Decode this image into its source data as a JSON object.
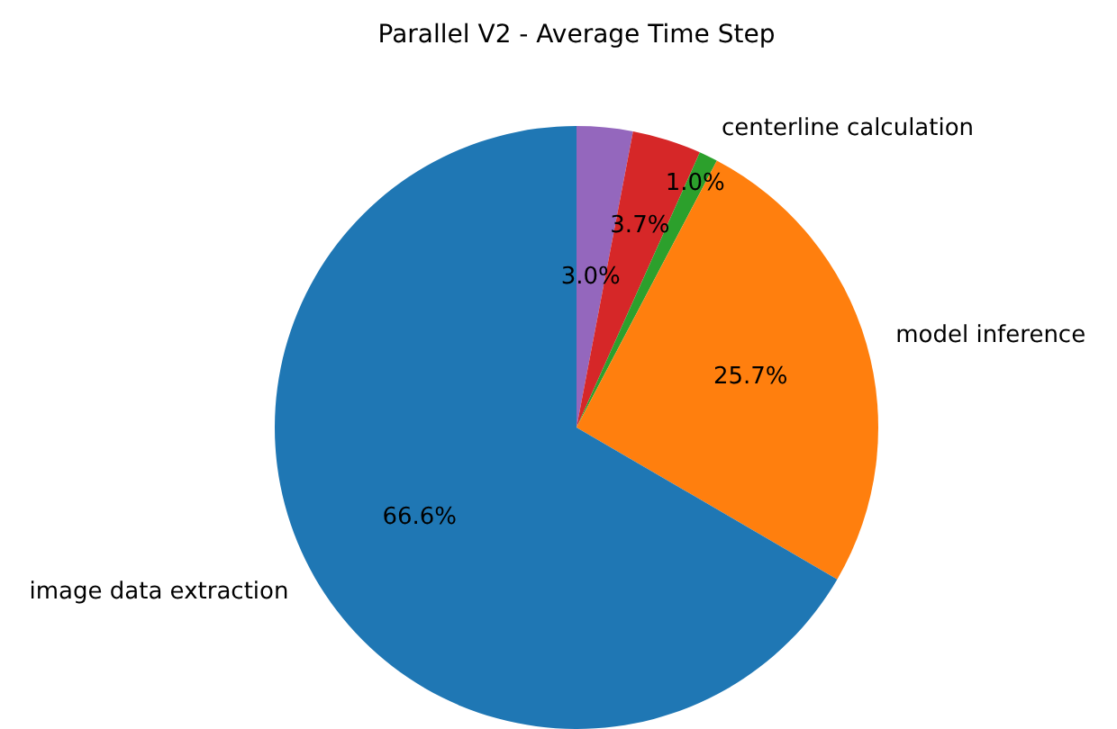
{
  "chart_data": {
    "type": "pie",
    "title": "Parallel V2 - Average Time Step",
    "categories": [
      "image data extraction",
      "model inference",
      "centerline calculation",
      null,
      null
    ],
    "values": [
      66.6,
      25.7,
      1.0,
      3.7,
      3.0
    ],
    "colors": [
      "#1f77b4",
      "#ff7f0e",
      "#2ca02c",
      "#d62728",
      "#9467bd"
    ],
    "value_labels": [
      "66.6%",
      "25.7%",
      "1.0%",
      "3.7%",
      "3.0%"
    ],
    "legend": false
  }
}
